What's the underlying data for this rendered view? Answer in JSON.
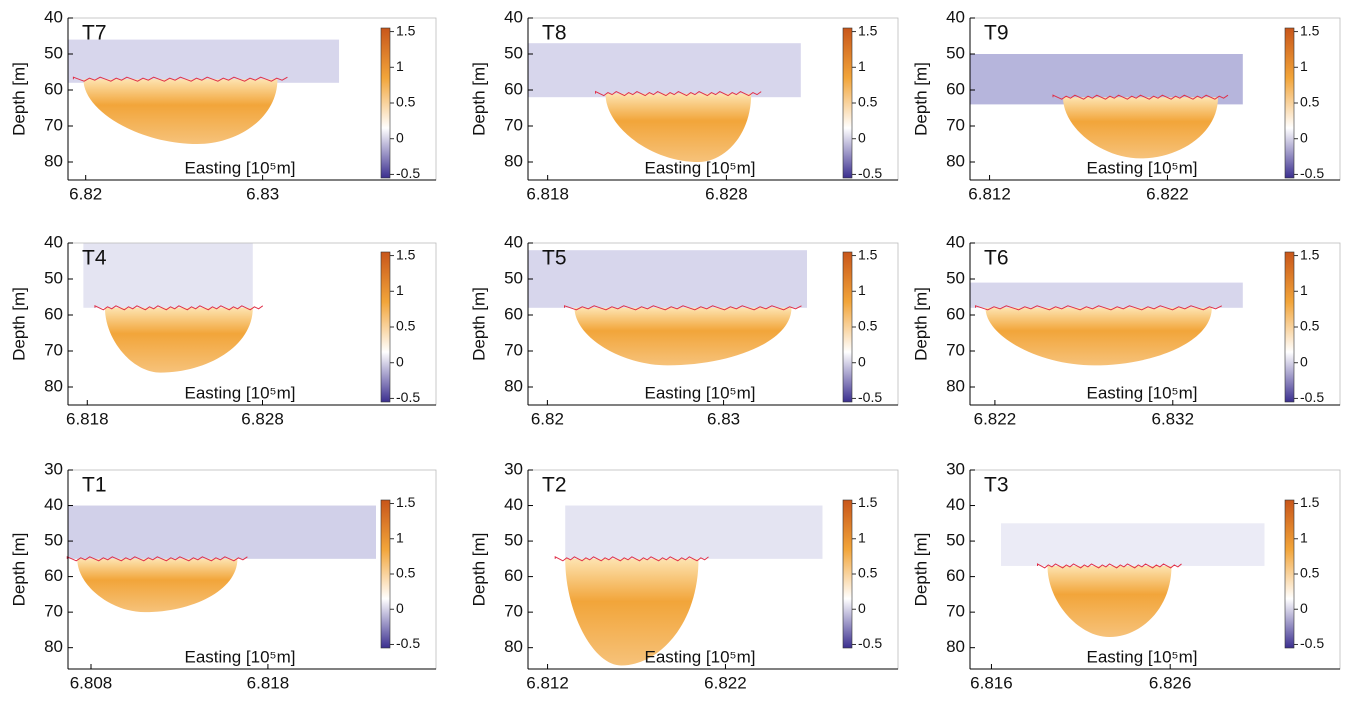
{
  "chart_data": [
    {
      "type": "heatmap",
      "title": "T7",
      "xlabel": "Easting [10⁵m]",
      "ylabel": "Depth [m]",
      "xlim": [
        6.819,
        6.8398
      ],
      "xticks": [
        6.82,
        6.83
      ],
      "ylim": [
        40,
        85
      ],
      "yticks": [
        40,
        50,
        60,
        70,
        80
      ],
      "clim": [
        -0.55,
        1.55
      ],
      "cticks": [
        1.5,
        1,
        0.5,
        0,
        -0.5
      ],
      "colormap": [
        "#3b2f8f",
        "#ffffff",
        "#f2a53a",
        "#c8561a"
      ]
    },
    {
      "type": "heatmap",
      "title": "T8",
      "xlabel": "Easting [10⁵m]",
      "ylabel": "Depth [m]",
      "xlim": [
        6.8169,
        6.8376
      ],
      "xticks": [
        6.818,
        6.828
      ],
      "ylim": [
        40,
        85
      ],
      "yticks": [
        40,
        50,
        60,
        70,
        80
      ],
      "clim": [
        -0.55,
        1.55
      ],
      "cticks": [
        1.5,
        1,
        0.5,
        0,
        -0.5
      ],
      "colormap": [
        "#3b2f8f",
        "#ffffff",
        "#f2a53a",
        "#c8561a"
      ]
    },
    {
      "type": "heatmap",
      "title": "T9",
      "xlabel": "Easting [10⁵m]",
      "ylabel": "Depth [m]",
      "xlim": [
        6.8109,
        6.8317
      ],
      "xticks": [
        6.812,
        6.822
      ],
      "ylim": [
        40,
        85
      ],
      "yticks": [
        40,
        50,
        60,
        70,
        80
      ],
      "clim": [
        -0.55,
        1.55
      ],
      "cticks": [
        1.5,
        1,
        0.5,
        0,
        -0.5
      ],
      "colormap": [
        "#3b2f8f",
        "#ffffff",
        "#f2a53a",
        "#c8561a"
      ]
    },
    {
      "type": "heatmap",
      "title": "T4",
      "xlabel": "Easting [10⁵m]",
      "ylabel": "Depth [m]",
      "xlim": [
        6.8169,
        6.8379
      ],
      "xticks": [
        6.818,
        6.828
      ],
      "ylim": [
        40,
        85
      ],
      "yticks": [
        40,
        50,
        60,
        70,
        80
      ],
      "clim": [
        -0.55,
        1.55
      ],
      "cticks": [
        1.5,
        1,
        0.5,
        0,
        -0.5
      ],
      "colormap": [
        "#3b2f8f",
        "#ffffff",
        "#f2a53a",
        "#c8561a"
      ]
    },
    {
      "type": "heatmap",
      "title": "T5",
      "xlabel": "Easting [10⁵m]",
      "ylabel": "Depth [m]",
      "xlim": [
        6.8189,
        6.8399
      ],
      "xticks": [
        6.82,
        6.83
      ],
      "ylim": [
        40,
        85
      ],
      "yticks": [
        40,
        50,
        60,
        70,
        80
      ],
      "clim": [
        -0.55,
        1.55
      ],
      "cticks": [
        1.5,
        1,
        0.5,
        0,
        -0.5
      ],
      "colormap": [
        "#3b2f8f",
        "#ffffff",
        "#f2a53a",
        "#c8561a"
      ]
    },
    {
      "type": "heatmap",
      "title": "T6",
      "xlabel": "Easting [10⁵m]",
      "ylabel": "Depth [m]",
      "xlim": [
        6.8206,
        6.8414
      ],
      "xticks": [
        6.822,
        6.832
      ],
      "ylim": [
        40,
        85
      ],
      "yticks": [
        40,
        50,
        60,
        70,
        80
      ],
      "clim": [
        -0.55,
        1.55
      ],
      "cticks": [
        1.5,
        1,
        0.5,
        0,
        -0.5
      ],
      "colormap": [
        "#3b2f8f",
        "#ffffff",
        "#f2a53a",
        "#c8561a"
      ]
    },
    {
      "type": "heatmap",
      "title": "T1",
      "xlabel": "Easting [10⁵m]",
      "ylabel": "Depth [m]",
      "xlim": [
        6.8067,
        6.8275
      ],
      "xticks": [
        6.808,
        6.818
      ],
      "ylim": [
        30,
        86
      ],
      "yticks": [
        30,
        40,
        50,
        60,
        70,
        80
      ],
      "clim": [
        -0.55,
        1.55
      ],
      "cticks": [
        1.5,
        1,
        0.5,
        0,
        -0.5
      ],
      "colormap": [
        "#3b2f8f",
        "#ffffff",
        "#f2a53a",
        "#c8561a"
      ]
    },
    {
      "type": "heatmap",
      "title": "T2",
      "xlabel": "Easting [10⁵m]",
      "ylabel": "Depth [m]",
      "xlim": [
        6.8109,
        6.8317
      ],
      "xticks": [
        6.812,
        6.822
      ],
      "ylim": [
        30,
        86
      ],
      "yticks": [
        30,
        40,
        50,
        60,
        70,
        80
      ],
      "clim": [
        -0.55,
        1.55
      ],
      "cticks": [
        1.5,
        1,
        0.5,
        0,
        -0.5
      ],
      "colormap": [
        "#3b2f8f",
        "#ffffff",
        "#f2a53a",
        "#c8561a"
      ]
    },
    {
      "type": "heatmap",
      "title": "T3",
      "xlabel": "Easting [10⁵m]",
      "ylabel": "Depth [m]",
      "xlim": [
        6.8148,
        6.8355
      ],
      "xticks": [
        6.816,
        6.826
      ],
      "ylim": [
        30,
        86
      ],
      "yticks": [
        30,
        40,
        50,
        60,
        70,
        80
      ],
      "clim": [
        -0.55,
        1.55
      ],
      "cticks": [
        1.5,
        1,
        0.5,
        0,
        -0.5
      ],
      "colormap": [
        "#3b2f8f",
        "#ffffff",
        "#f2a53a",
        "#c8561a"
      ]
    }
  ]
}
